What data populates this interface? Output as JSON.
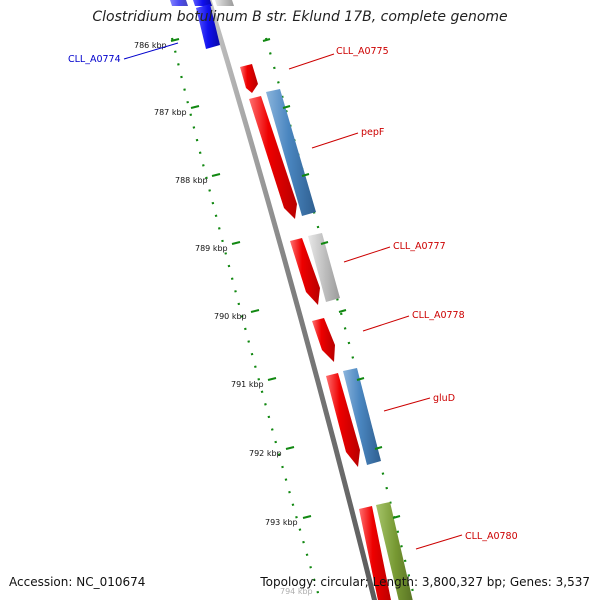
{
  "title": "Clostridium botulinum B str. Eklund 17B, complete genome",
  "footer": {
    "accession": "Accession: NC_010674",
    "summary": "Topology: circular; Length: 3,800,327 bp; Genes: 3,537"
  },
  "colors": {
    "backbone": "#808080",
    "cds_red": "#ee0000",
    "blue_feature": "#4a86c0",
    "grey_feature": "#c0c0c0",
    "green_feature": "#779933",
    "deep_blue_feature": "#1010ee",
    "tick_green": "#118811",
    "label_red": "#cc0000",
    "label_blue": "#0000cc"
  },
  "scale": {
    "ticks": [
      {
        "kbp": 786,
        "label": "786 kbp"
      },
      {
        "kbp": 787,
        "label": "787 kbp"
      },
      {
        "kbp": 788,
        "label": "788 kbp"
      },
      {
        "kbp": 789,
        "label": "789 kbp"
      },
      {
        "kbp": 790,
        "label": "790 kbp"
      },
      {
        "kbp": 791,
        "label": "791 kbp"
      },
      {
        "kbp": 792,
        "label": "792 kbp"
      },
      {
        "kbp": 793,
        "label": "793 kbp"
      },
      {
        "kbp": 794,
        "label": "794 kbp"
      }
    ]
  },
  "genes": [
    {
      "name": "CLL_A0774",
      "color": "blue"
    },
    {
      "name": "CLL_A0775",
      "color": "red"
    },
    {
      "name": "pepF",
      "color": "red"
    },
    {
      "name": "CLL_A0777",
      "color": "red"
    },
    {
      "name": "CLL_A0778",
      "color": "red"
    },
    {
      "name": "gluD",
      "color": "red"
    },
    {
      "name": "CLL_A0780",
      "color": "red"
    }
  ]
}
